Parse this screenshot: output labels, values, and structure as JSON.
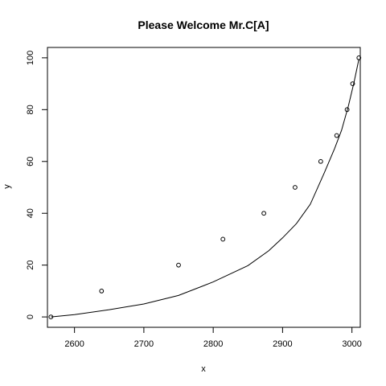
{
  "chart_data": {
    "type": "scatter",
    "title": "Please Welcome Mr.C[A]",
    "xlabel": "x",
    "ylabel": "y",
    "xlim": [
      2561,
      3012
    ],
    "ylim": [
      -4,
      104
    ],
    "x_ticks": [
      2600,
      2700,
      2800,
      2900,
      3000
    ],
    "y_ticks": [
      0,
      20,
      40,
      60,
      80,
      100
    ],
    "grid": false,
    "legend": "none",
    "series": [
      {
        "kind": "points",
        "marker": "open-circle",
        "x": [
          2566,
          2639,
          2750,
          2814,
          2873,
          2918,
          2955,
          2978,
          2993,
          3001,
          3010
        ],
        "y": [
          0,
          10,
          20,
          30,
          40,
          50,
          60,
          70,
          80,
          90,
          100
        ]
      },
      {
        "kind": "line",
        "x": [
          2566,
          2600,
          2650,
          2700,
          2750,
          2800,
          2850,
          2880,
          2900,
          2920,
          2940,
          2960,
          2975,
          2985,
          2995,
          3003,
          3010
        ],
        "y": [
          0,
          0.9,
          2.8,
          5.0,
          8.3,
          13.5,
          19.8,
          25.5,
          30.5,
          36.0,
          43.5,
          55.5,
          65.0,
          72.0,
          81.5,
          90.5,
          99.5
        ]
      }
    ]
  }
}
